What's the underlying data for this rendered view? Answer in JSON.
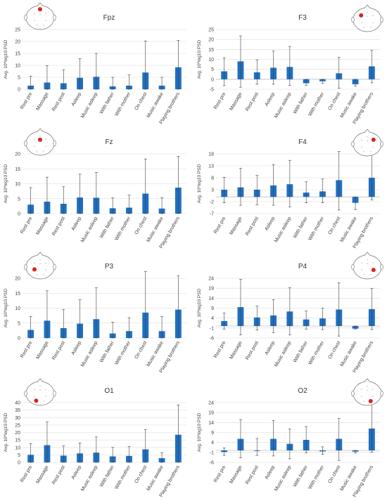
{
  "categories": [
    "Rest pre",
    "Massage",
    "Rest post",
    "Asleep",
    "Music asleep",
    "With father",
    "With mother",
    "On chest",
    "Music awake",
    "Playing brothers"
  ],
  "ylabel": "Avg. 10*log10 PSD",
  "colors": {
    "bar": "#1F6FC0",
    "grid": "#D9D9D9",
    "error": "#404040",
    "electrode": "#E0201E"
  },
  "chart_data": [
    {
      "id": "fpz",
      "type": "bar",
      "title": "Fpz",
      "ylim": [
        0,
        25
      ],
      "yticks": [
        0,
        5,
        10,
        15,
        20,
        25
      ],
      "electrode": [
        0.5,
        0.15
      ],
      "values": [
        1.5,
        2.8,
        2.5,
        4.8,
        5.2,
        1.2,
        1.5,
        7.0,
        1.5,
        9.2
      ],
      "err_high": [
        5.5,
        9.8,
        8.2,
        12.8,
        15.0,
        5.0,
        6.0,
        20.2,
        5.0,
        20.5
      ],
      "err_low": [
        0,
        0,
        0,
        0,
        0,
        0,
        0,
        0,
        0,
        0
      ]
    },
    {
      "id": "f3",
      "type": "bar",
      "title": "F3",
      "ylim": [
        -5,
        25
      ],
      "yticks": [
        -5,
        0,
        5,
        10,
        15,
        20,
        25
      ],
      "electrode": [
        0.28,
        0.32
      ],
      "values": [
        4.0,
        9.0,
        3.5,
        5.8,
        6.2,
        -2.0,
        -1.0,
        3.0,
        -2.5,
        6.5
      ],
      "err_high": [
        10.8,
        21.8,
        9.8,
        14.2,
        16.5,
        0,
        0,
        11.0,
        0,
        14.5
      ],
      "err_low": [
        -3.2,
        -4.0,
        -2.5,
        -2.5,
        -3.0,
        -3.0,
        -2.0,
        -4.5,
        -3.5,
        -1.8
      ]
    },
    {
      "id": "fz",
      "type": "bar",
      "title": "Fz",
      "ylim": [
        0,
        20
      ],
      "yticks": [
        0,
        5,
        10,
        15,
        20
      ],
      "electrode": [
        0.5,
        0.35
      ],
      "values": [
        3.0,
        4.0,
        3.3,
        5.4,
        5.3,
        1.8,
        2.0,
        6.7,
        1.7,
        8.7
      ],
      "err_high": [
        8.7,
        12.2,
        9.0,
        13.2,
        13.8,
        5.3,
        6.2,
        18.3,
        5.3,
        19.2
      ],
      "err_low": [
        0,
        0,
        0,
        0,
        0,
        0,
        0,
        0,
        0,
        0
      ]
    },
    {
      "id": "f4",
      "type": "bar",
      "title": "F4",
      "ylim": [
        -7,
        18
      ],
      "yticks": [
        -7,
        -2,
        3,
        8,
        13,
        18
      ],
      "electrode": [
        0.72,
        0.32
      ],
      "values": [
        3.0,
        4.0,
        3.0,
        4.8,
        5.3,
        1.8,
        2.3,
        7.0,
        -2.5,
        8.0
      ],
      "err_high": [
        8.2,
        12.0,
        9.0,
        13.5,
        15.3,
        6.3,
        7.5,
        19.0,
        0,
        17.8
      ],
      "err_low": [
        -2.5,
        -3.5,
        -3.3,
        -3.5,
        -4.2,
        -2.5,
        -2.5,
        -5.5,
        -5.3,
        -1.3
      ]
    },
    {
      "id": "p3",
      "type": "bar",
      "title": "P3",
      "ylim": [
        0,
        20
      ],
      "yticks": [
        0,
        5,
        10,
        15,
        20
      ],
      "electrode": [
        0.3,
        0.6
      ],
      "values": [
        2.7,
        5.8,
        3.3,
        4.8,
        6.3,
        1.5,
        2.3,
        8.5,
        2.3,
        9.5
      ],
      "err_high": [
        7.2,
        15.8,
        9.5,
        12.8,
        16.8,
        5.3,
        6.8,
        22.3,
        7.2,
        20.8
      ],
      "err_low": [
        0,
        0,
        0,
        0,
        0,
        0,
        0,
        0,
        0,
        0
      ]
    },
    {
      "id": "p4",
      "type": "bar",
      "title": "P4",
      "ylim": [
        -6,
        24
      ],
      "yticks": [
        -6,
        -1,
        4,
        9,
        14,
        19,
        24
      ],
      "electrode": [
        0.72,
        0.62
      ],
      "values": [
        2.5,
        9.5,
        4.3,
        5.3,
        7.3,
        3.3,
        3.8,
        8.3,
        -1.3,
        8.5
      ],
      "err_high": [
        6.5,
        23.5,
        10.0,
        13.3,
        19.3,
        7.5,
        9.0,
        21.8,
        0,
        18.8
      ],
      "err_low": [
        -1.5,
        -4.5,
        -2.0,
        -3.3,
        -4.5,
        -1.5,
        -1.8,
        -5.0,
        -1.5,
        -1.8
      ]
    },
    {
      "id": "o1",
      "type": "bar",
      "title": "O1",
      "ylim": [
        0,
        40
      ],
      "yticks": [
        0,
        5,
        10,
        15,
        20,
        25,
        30,
        35,
        40
      ],
      "electrode": [
        0.36,
        0.8
      ],
      "values": [
        5.0,
        11.5,
        4.5,
        6.0,
        6.5,
        4.0,
        4.3,
        8.7,
        2.8,
        18.5
      ],
      "err_high": [
        12.5,
        27.0,
        11.0,
        13.0,
        17.0,
        10.0,
        10.5,
        22.0,
        6.5,
        38.5
      ],
      "err_low": [
        0,
        0,
        0,
        0,
        0,
        0,
        0,
        0,
        0,
        0
      ]
    },
    {
      "id": "o2",
      "type": "bar",
      "title": "O2",
      "ylim": [
        -6,
        24
      ],
      "yticks": [
        -6,
        -1,
        4,
        9,
        14,
        19,
        24
      ],
      "electrode": [
        0.62,
        0.82
      ],
      "values": [
        -0.8,
        5.8,
        -0.3,
        5.8,
        3.3,
        5.3,
        -0.5,
        5.8,
        -0.6,
        11.0
      ],
      "err_high": [
        1.3,
        15.5,
        6.0,
        15.0,
        10.8,
        12.0,
        1.8,
        16.0,
        0,
        24.5
      ],
      "err_low": [
        -2.5,
        -3.7,
        -2.5,
        -2.8,
        -4.2,
        -1.2,
        -2.0,
        -5.0,
        -1.3,
        -0.8
      ]
    }
  ]
}
